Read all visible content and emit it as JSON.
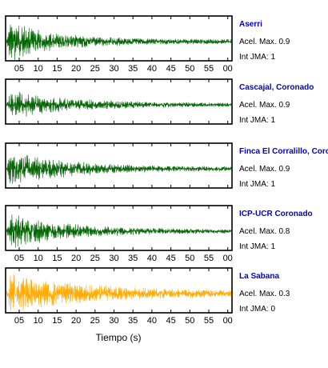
{
  "chart_data": {
    "type": "line",
    "xlabel": "Tiempo (s)",
    "x_tick_labels": [
      "05",
      "10",
      "15",
      "20",
      "25",
      "30",
      "35",
      "40",
      "45",
      "50",
      "55",
      "00"
    ],
    "station_label_color": "#0000cc",
    "panels": [
      {
        "station": "Aserri",
        "accel_line": "Acel. Max. 0.9",
        "jma_line": "Int JMA: 1",
        "trace_color": "#006400",
        "amplitude": 0.9,
        "decay": 0.085,
        "show_ticks": true
      },
      {
        "station": "Cascajal, Coronado",
        "accel_line": "Acel. Max. 0.9",
        "jma_line": "Int JMA: 1",
        "trace_color": "#006400",
        "amplitude": 0.7,
        "decay": 0.065,
        "show_ticks": false
      },
      {
        "station": "Finca El Corralillo, Coronado",
        "accel_line": "Acel. Max. 0.9",
        "jma_line": "Int JMA: 1",
        "trace_color": "#006400",
        "amplitude": 0.75,
        "decay": 0.06,
        "show_ticks": false
      },
      {
        "station": "ICP-UCR Coronado",
        "accel_line": "Acel. Max. 0.8",
        "jma_line": "Int JMA: 1",
        "trace_color": "#006400",
        "amplitude": 0.8,
        "decay": 0.07,
        "show_ticks": true
      },
      {
        "station": "La Sabana",
        "accel_line": "Acel. Max. 0.3",
        "jma_line": "Int JMA: 0",
        "trace_color": "#ffaa00",
        "amplitude": 0.9,
        "decay": 0.045,
        "show_ticks": true
      }
    ]
  }
}
